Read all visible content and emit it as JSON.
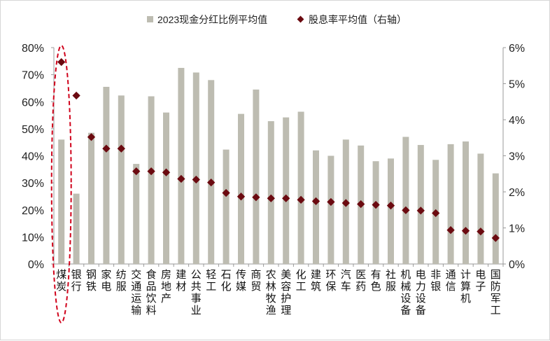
{
  "chart_data": {
    "type": "bar+scatter",
    "legend": {
      "placement": "top",
      "entries": [
        "2023现金分红比例平均值",
        "股息率平均值（右轴）"
      ]
    },
    "categories": [
      "煤炭",
      "银行",
      "钢铁",
      "家电",
      "纺服",
      "交通运输",
      "食品饮料",
      "房地产",
      "建材",
      "公共事业",
      "轻工",
      "石化",
      "传媒",
      "商贸",
      "农林牧渔",
      "美容护理",
      "化工",
      "建筑",
      "环保",
      "汽车",
      "医药",
      "有色",
      "社服",
      "机械设备",
      "电力设备",
      "非银",
      "通信",
      "计算机",
      "电子",
      "国防军工"
    ],
    "series": [
      {
        "name": "2023现金分红比例平均值",
        "type": "bar",
        "axis": "left",
        "color": "#bdbcb1",
        "values": [
          46,
          26,
          48.5,
          65.5,
          62.3,
          37,
          62,
          56,
          72.5,
          70.8,
          68,
          42.3,
          55.5,
          64.5,
          52.8,
          54.2,
          56.3,
          42,
          40,
          46,
          43.8,
          38,
          39,
          47,
          44,
          38.5,
          44.3,
          45.3,
          40.8,
          33.5
        ]
      },
      {
        "name": "股息率平均值（右轴）",
        "type": "scatter",
        "axis": "right",
        "color": "#6b0a10",
        "marker": "diamond",
        "values": [
          5.6,
          4.67,
          3.52,
          3.2,
          3.2,
          2.57,
          2.57,
          2.54,
          2.36,
          2.34,
          2.26,
          1.97,
          1.87,
          1.85,
          1.82,
          1.82,
          1.78,
          1.74,
          1.72,
          1.69,
          1.66,
          1.64,
          1.62,
          1.49,
          1.48,
          1.41,
          0.94,
          0.92,
          0.9,
          0.72
        ]
      }
    ],
    "yleft": {
      "range": [
        0,
        80
      ],
      "ticks": [
        "0%",
        "10%",
        "20%",
        "30%",
        "40%",
        "50%",
        "60%",
        "70%",
        "80%"
      ]
    },
    "yright": {
      "range": [
        0,
        6
      ],
      "ticks": [
        "0%",
        "1%",
        "2%",
        "3%",
        "4%",
        "5%",
        "6%"
      ]
    },
    "grid": false,
    "highlight": {
      "category": "煤炭",
      "style": "red dashed ellipse",
      "color": "#d0021b"
    }
  }
}
